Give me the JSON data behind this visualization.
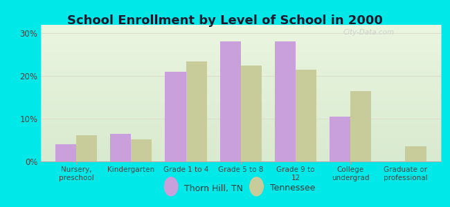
{
  "title": "School Enrollment by Level of School in 2000",
  "categories": [
    "Nursery,\npreschool",
    "Kindergarten",
    "Grade 1 to 4",
    "Grade 5 to 8",
    "Grade 9 to\n12",
    "College\nundergrad",
    "Graduate or\nprofessional"
  ],
  "thorn_hill": [
    4.0,
    6.5,
    21.0,
    28.2,
    28.2,
    10.5,
    0.0
  ],
  "tennessee": [
    6.2,
    5.1,
    23.5,
    22.5,
    21.5,
    16.5,
    3.5
  ],
  "color_thorn_hill": "#c9a0dc",
  "color_tennessee": "#c8cc9a",
  "background_outer": "#00e8e8",
  "background_inner": "#e8f5e0",
  "ylim": [
    0,
    32
  ],
  "yticks": [
    0,
    10,
    20,
    30
  ],
  "ytick_labels": [
    "0%",
    "10%",
    "20%",
    "30%"
  ],
  "legend_thorn_hill": "Thorn Hill, TN",
  "legend_tennessee": "Tennessee",
  "bar_width": 0.38,
  "watermark": "City-Data.com",
  "title_color": "#1a1a2e",
  "tick_color": "#444444",
  "grid_color": "#ddddcc"
}
